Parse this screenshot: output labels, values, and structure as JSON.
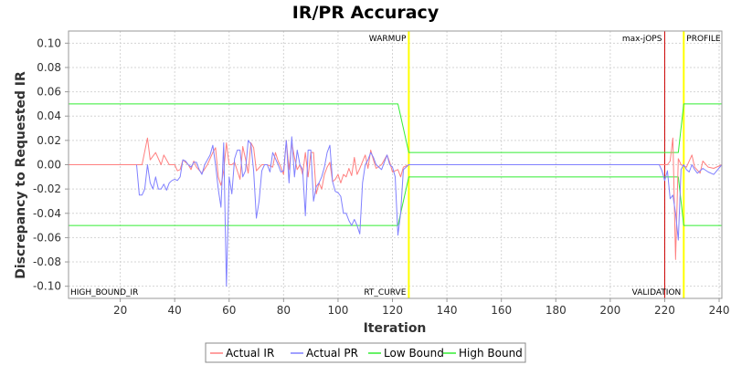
{
  "chart_data": {
    "type": "line",
    "title": "IR/PR Accuracy",
    "xlabel": "Iteration",
    "ylabel": "Discrepancy to Requested IR",
    "xlim": [
      1,
      241
    ],
    "ylim": [
      -0.11,
      0.11
    ],
    "x_ticks": [
      20,
      40,
      60,
      80,
      100,
      120,
      140,
      160,
      180,
      200,
      220,
      240
    ],
    "y_ticks": [
      -0.1,
      -0.08,
      -0.06,
      -0.04,
      -0.02,
      0.0,
      0.02,
      0.04,
      0.06,
      0.08,
      0.1
    ],
    "y_tick_labels": [
      "-0.10",
      "-0.08",
      "-0.06",
      "-0.04",
      "-0.02",
      "0.00",
      "0.02",
      "0.04",
      "0.06",
      "0.08",
      "0.10"
    ],
    "grid": true,
    "legend_placement": "bottom-center",
    "vertical_markers": [
      {
        "label": "WARMUP",
        "x": 126,
        "color": "#ffff00",
        "label_side": "left"
      },
      {
        "label": "max-jOPS",
        "x": 220,
        "color": "#cc0000",
        "label_side": "left"
      },
      {
        "label": "PROFILE",
        "x": 227,
        "color": "#ffff00",
        "label_side": "right"
      }
    ],
    "bottom_labels": [
      {
        "label": "HIGH_BOUND_IR",
        "x": 1,
        "label_side": "right"
      },
      {
        "label": "RT_CURVE",
        "x": 126,
        "label_side": "left"
      },
      {
        "label": "VALIDATION",
        "x": 227,
        "label_side": "left"
      }
    ],
    "series": [
      {
        "name": "Actual IR",
        "color": "#ff8080",
        "points": [
          [
            1,
            0
          ],
          [
            26,
            0
          ],
          [
            28,
            0
          ],
          [
            30,
            0.022
          ],
          [
            31,
            0.004
          ],
          [
            33,
            0.01
          ],
          [
            35,
            0
          ],
          [
            36,
            0.008
          ],
          [
            38,
            0
          ],
          [
            40,
            0
          ],
          [
            41,
            -0.005
          ],
          [
            42,
            -0.004
          ],
          [
            43,
            0.004
          ],
          [
            45,
            0
          ],
          [
            46,
            -0.004
          ],
          [
            47,
            0.003
          ],
          [
            48,
            -0.002
          ],
          [
            50,
            -0.007
          ],
          [
            52,
            0
          ],
          [
            54,
            0.01
          ],
          [
            55,
            0.014
          ],
          [
            56,
            -0.01
          ],
          [
            57,
            -0.017
          ],
          [
            58,
            -0.005
          ],
          [
            59,
            0.018
          ],
          [
            60,
            0
          ],
          [
            61,
            0
          ],
          [
            62,
            0.002
          ],
          [
            64,
            -0.012
          ],
          [
            65,
            0.015
          ],
          [
            66,
            0.005
          ],
          [
            67,
            -0.007
          ],
          [
            68,
            0.018
          ],
          [
            69,
            0.014
          ],
          [
            70,
            -0.005
          ],
          [
            72,
            0
          ],
          [
            74,
            0
          ],
          [
            76,
            -0.002
          ],
          [
            77,
            0.01
          ],
          [
            78,
            0.003
          ],
          [
            79,
            -0.002
          ],
          [
            80,
            -0.008
          ],
          [
            81,
            0.02
          ],
          [
            82,
            -0.004
          ],
          [
            83,
            0.018
          ],
          [
            84,
            0.006
          ],
          [
            85,
            -0.004
          ],
          [
            86,
            0
          ],
          [
            87,
            -0.008
          ],
          [
            88,
            0.01
          ],
          [
            89,
            -0.01
          ],
          [
            90,
            0.01
          ],
          [
            91,
            0.01
          ],
          [
            92,
            -0.024
          ],
          [
            93,
            -0.015
          ],
          [
            94,
            -0.02
          ],
          [
            95,
            -0.008
          ],
          [
            96,
            -0.002
          ],
          [
            97,
            0.002
          ],
          [
            98,
            -0.014
          ],
          [
            99,
            -0.012
          ],
          [
            100,
            -0.008
          ],
          [
            101,
            -0.015
          ],
          [
            102,
            -0.008
          ],
          [
            103,
            -0.01
          ],
          [
            104,
            -0.003
          ],
          [
            105,
            -0.009
          ],
          [
            106,
            0.006
          ],
          [
            107,
            -0.008
          ],
          [
            108,
            -0.003
          ],
          [
            110,
            0.008
          ],
          [
            111,
            -0.003
          ],
          [
            112,
            0.012
          ],
          [
            113,
            0.004
          ],
          [
            114,
            -0.003
          ],
          [
            116,
            0
          ],
          [
            118,
            0.008
          ],
          [
            119,
            0.002
          ],
          [
            120,
            -0.006
          ],
          [
            122,
            -0.004
          ],
          [
            123,
            -0.01
          ],
          [
            124,
            -0.002
          ],
          [
            126,
            0
          ],
          [
            150,
            0
          ],
          [
            220,
            0
          ],
          [
            221,
            0
          ],
          [
            222,
            0.003
          ],
          [
            223,
            0.022
          ],
          [
            224,
            -0.078
          ],
          [
            225,
            0.005
          ],
          [
            226,
            0
          ],
          [
            228,
            -0.002
          ],
          [
            230,
            0.008
          ],
          [
            231,
            -0.002
          ],
          [
            233,
            -0.007
          ],
          [
            234,
            0.003
          ],
          [
            236,
            -0.002
          ],
          [
            238,
            -0.003
          ],
          [
            241,
            0
          ]
        ]
      },
      {
        "name": "Actual PR",
        "color": "#8080ff",
        "points": [
          [
            26,
            0
          ],
          [
            27,
            -0.025
          ],
          [
            28,
            -0.025
          ],
          [
            29,
            -0.02
          ],
          [
            30,
            0
          ],
          [
            31,
            -0.015
          ],
          [
            32,
            -0.02
          ],
          [
            33,
            -0.01
          ],
          [
            34,
            -0.02
          ],
          [
            35,
            -0.02
          ],
          [
            36,
            -0.016
          ],
          [
            37,
            -0.021
          ],
          [
            38,
            -0.015
          ],
          [
            39,
            -0.013
          ],
          [
            40,
            -0.012
          ],
          [
            41,
            -0.013
          ],
          [
            42,
            -0.01
          ],
          [
            43,
            0.004
          ],
          [
            44,
            0.003
          ],
          [
            45,
            0
          ],
          [
            46,
            -0.002
          ],
          [
            47,
            0.002
          ],
          [
            48,
            0.002
          ],
          [
            49,
            -0.004
          ],
          [
            50,
            -0.008
          ],
          [
            51,
            0
          ],
          [
            53,
            0.008
          ],
          [
            54,
            0.016
          ],
          [
            55,
            0
          ],
          [
            56,
            -0.02
          ],
          [
            57,
            -0.035
          ],
          [
            58,
            0.018
          ],
          [
            59,
            -0.1
          ],
          [
            60,
            -0.01
          ],
          [
            61,
            -0.024
          ],
          [
            62,
            0.005
          ],
          [
            63,
            0.012
          ],
          [
            64,
            0.012
          ],
          [
            65,
            -0.01
          ],
          [
            66,
            -0.005
          ],
          [
            67,
            0.02
          ],
          [
            68,
            0.017
          ],
          [
            69,
            -0.005
          ],
          [
            70,
            -0.044
          ],
          [
            71,
            -0.03
          ],
          [
            72,
            -0.005
          ],
          [
            73,
            0
          ],
          [
            74,
            0
          ],
          [
            75,
            -0.006
          ],
          [
            76,
            0.01
          ],
          [
            77,
            0.005
          ],
          [
            78,
            0
          ],
          [
            79,
            -0.006
          ],
          [
            80,
            -0.005
          ],
          [
            81,
            0.02
          ],
          [
            82,
            -0.015
          ],
          [
            83,
            0.023
          ],
          [
            84,
            -0.01
          ],
          [
            85,
            0.012
          ],
          [
            86,
            0
          ],
          [
            87,
            -0.004
          ],
          [
            88,
            -0.042
          ],
          [
            89,
            0.012
          ],
          [
            90,
            0.012
          ],
          [
            91,
            -0.03
          ],
          [
            92,
            -0.018
          ],
          [
            93,
            -0.015
          ],
          [
            94,
            -0.01
          ],
          [
            95,
            -0.002
          ],
          [
            96,
            0.01
          ],
          [
            97,
            0.016
          ],
          [
            98,
            -0.014
          ],
          [
            99,
            -0.022
          ],
          [
            100,
            -0.023
          ],
          [
            101,
            -0.026
          ],
          [
            102,
            -0.04
          ],
          [
            103,
            -0.04
          ],
          [
            104,
            -0.046
          ],
          [
            105,
            -0.05
          ],
          [
            106,
            -0.045
          ],
          [
            107,
            -0.05
          ],
          [
            108,
            -0.057
          ],
          [
            109,
            -0.015
          ],
          [
            110,
            0
          ],
          [
            111,
            0.004
          ],
          [
            112,
            0.01
          ],
          [
            113,
            0.006
          ],
          [
            114,
            0
          ],
          [
            116,
            -0.004
          ],
          [
            118,
            0.008
          ],
          [
            119,
            0
          ],
          [
            120,
            -0.002
          ],
          [
            121,
            -0.01
          ],
          [
            122,
            -0.058
          ],
          [
            123,
            -0.04
          ],
          [
            124,
            -0.004
          ],
          [
            126,
            0
          ],
          [
            150,
            0
          ],
          [
            218,
            0
          ],
          [
            219,
            -0.005
          ],
          [
            220,
            -0.013
          ],
          [
            221,
            -0.005
          ],
          [
            222,
            -0.028
          ],
          [
            223,
            -0.025
          ],
          [
            224,
            -0.04
          ],
          [
            225,
            -0.062
          ],
          [
            226,
            -0.004
          ],
          [
            227,
            0
          ],
          [
            228,
            -0.004
          ],
          [
            229,
            -0.006
          ],
          [
            230,
            0
          ],
          [
            231,
            -0.004
          ],
          [
            232,
            -0.007
          ],
          [
            234,
            -0.003
          ],
          [
            236,
            -0.006
          ],
          [
            238,
            -0.008
          ],
          [
            241,
            0
          ]
        ]
      },
      {
        "name": "Low Bound",
        "color": "#33ee33",
        "points": [
          [
            1,
            -0.05
          ],
          [
            122,
            -0.05
          ],
          [
            126,
            -0.01
          ],
          [
            220,
            -0.01
          ],
          [
            225,
            -0.01
          ],
          [
            227,
            -0.05
          ],
          [
            241,
            -0.05
          ]
        ]
      },
      {
        "name": "High Bound",
        "color": "#33ee33",
        "points": [
          [
            1,
            0.05
          ],
          [
            122,
            0.05
          ],
          [
            126,
            0.01
          ],
          [
            220,
            0.01
          ],
          [
            225,
            0.01
          ],
          [
            227,
            0.05
          ],
          [
            241,
            0.05
          ]
        ]
      }
    ]
  }
}
